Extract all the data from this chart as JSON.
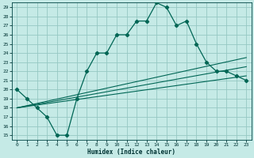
{
  "xlabel": "Humidex (Indice chaleur)",
  "xlim": [
    -0.5,
    23.5
  ],
  "ylim": [
    14.5,
    29.5
  ],
  "xticks": [
    0,
    1,
    2,
    3,
    4,
    5,
    6,
    7,
    8,
    9,
    10,
    11,
    12,
    13,
    14,
    15,
    16,
    17,
    18,
    19,
    20,
    21,
    22,
    23
  ],
  "yticks": [
    15,
    16,
    17,
    18,
    19,
    20,
    21,
    22,
    23,
    24,
    25,
    26,
    27,
    28,
    29
  ],
  "bg_color": "#c5eae6",
  "grid_color": "#96c8c3",
  "line_color": "#006655",
  "main_y": [
    20,
    19,
    18,
    17,
    15,
    15,
    19,
    22,
    24,
    24,
    26,
    26,
    27.5,
    27.5,
    29.5,
    29,
    27,
    27.5,
    25,
    23,
    22,
    22,
    21.5,
    21
  ],
  "reg_lines": [
    [
      0,
      18.0,
      23,
      23.5
    ],
    [
      0,
      18.0,
      23,
      22.5
    ],
    [
      0,
      18.0,
      23,
      21.5
    ]
  ],
  "marker": "D",
  "markersize": 2.2,
  "linewidth": 0.9,
  "reg_linewidth": 0.8,
  "tick_fontsize": 4.5,
  "xlabel_fontsize": 5.5
}
